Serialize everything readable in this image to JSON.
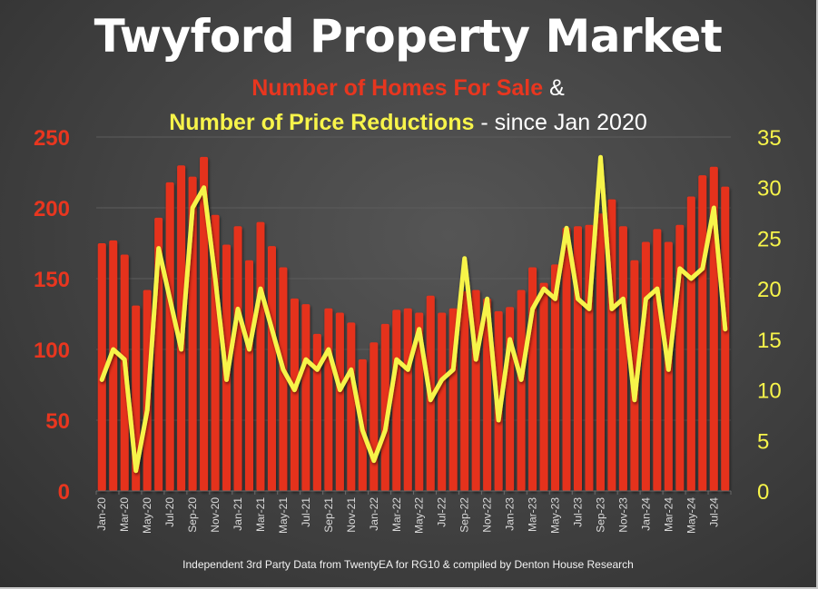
{
  "header": {
    "title": "Twyford Property Market",
    "subtitle_line1_red": "Number of Homes For Sale",
    "subtitle_line1_white": " &",
    "subtitle_line2_yellow": "Number of Price Reductions",
    "subtitle_line2_white": " - since Jan 2020"
  },
  "footer": {
    "source": "Independent 3rd Party Data from TwentyEA for RG10 & compiled by Denton House Research"
  },
  "colors": {
    "bars": "#e5321e",
    "line": "#f7f44a",
    "left_axis": "#e8361f",
    "right_axis": "#f7f44a",
    "grid": "#5c5c5c",
    "tick_text": "#d9d9d9"
  },
  "chart_data": {
    "type": "bar+line",
    "title": "Twyford Property Market",
    "categories": [
      "Jan-20",
      "Feb-20",
      "Mar-20",
      "Apr-20",
      "May-20",
      "Jun-20",
      "Jul-20",
      "Aug-20",
      "Sep-20",
      "Oct-20",
      "Nov-20",
      "Dec-20",
      "Jan-21",
      "Feb-21",
      "Mar-21",
      "Apr-21",
      "May-21",
      "Jun-21",
      "Jul-21",
      "Aug-21",
      "Sep-21",
      "Oct-21",
      "Nov-21",
      "Dec-21",
      "Jan-22",
      "Feb-22",
      "Mar-22",
      "Apr-22",
      "May-22",
      "Jun-22",
      "Jul-22",
      "Aug-22",
      "Sep-22",
      "Oct-22",
      "Nov-22",
      "Dec-22",
      "Jan-23",
      "Feb-23",
      "Mar-23",
      "Apr-23",
      "May-23",
      "Jun-23",
      "Jul-23",
      "Aug-23",
      "Sep-23",
      "Oct-23",
      "Nov-23",
      "Dec-23",
      "Jan-24",
      "Feb-24",
      "Mar-24",
      "Apr-24",
      "May-24",
      "Jun-24",
      "Jul-24",
      "Aug-24"
    ],
    "x_tick_labels": [
      "Jan-20",
      "Mar-20",
      "May-20",
      "Jul-20",
      "Sep-20",
      "Nov-20",
      "Jan-21",
      "Mar-21",
      "May-21",
      "Jul-21",
      "Sep-21",
      "Nov-21",
      "Jan-22",
      "Mar-22",
      "May-22",
      "Jul-22",
      "Sep-22",
      "Nov-22",
      "Jan-23",
      "Mar-23",
      "May-23",
      "Jul-23",
      "Sep-23",
      "Nov-23",
      "Jan-24",
      "Mar-24",
      "May-24",
      "Jul-24"
    ],
    "series": [
      {
        "name": "Number of Homes For Sale",
        "type": "bar",
        "axis": "left",
        "values": [
          175,
          177,
          167,
          131,
          142,
          193,
          218,
          230,
          222,
          236,
          195,
          174,
          187,
          163,
          190,
          173,
          158,
          136,
          132,
          111,
          129,
          126,
          119,
          93,
          105,
          118,
          128,
          129,
          126,
          138,
          126,
          129,
          141,
          142,
          136,
          127,
          130,
          142,
          158,
          147,
          160,
          186,
          187,
          188,
          196,
          206,
          187,
          163,
          176,
          185,
          176,
          188,
          208,
          223,
          229,
          215
        ]
      },
      {
        "name": "Number of Price Reductions",
        "type": "line",
        "axis": "right",
        "values": [
          11,
          14,
          13,
          2,
          8,
          24,
          19,
          14,
          28,
          30,
          21,
          11,
          18,
          14,
          20,
          16,
          12,
          10,
          13,
          12,
          14,
          10,
          12,
          6,
          3,
          6,
          13,
          12,
          16,
          9,
          11,
          12,
          23,
          13,
          19,
          7,
          15,
          11,
          18,
          20,
          19,
          26,
          19,
          18,
          33,
          18,
          19,
          9,
          19,
          20,
          12,
          22,
          21,
          22,
          28,
          16
        ]
      }
    ],
    "left_axis": {
      "ylim": [
        0,
        250
      ],
      "ticks": [
        "0",
        "50",
        "100",
        "150",
        "200",
        "250"
      ]
    },
    "right_axis": {
      "ylim": [
        0,
        35
      ],
      "ticks": [
        "0",
        "5",
        "10",
        "15",
        "20",
        "25",
        "30",
        "35"
      ]
    },
    "grid": true,
    "legend": "none (series named in subtitle)"
  }
}
